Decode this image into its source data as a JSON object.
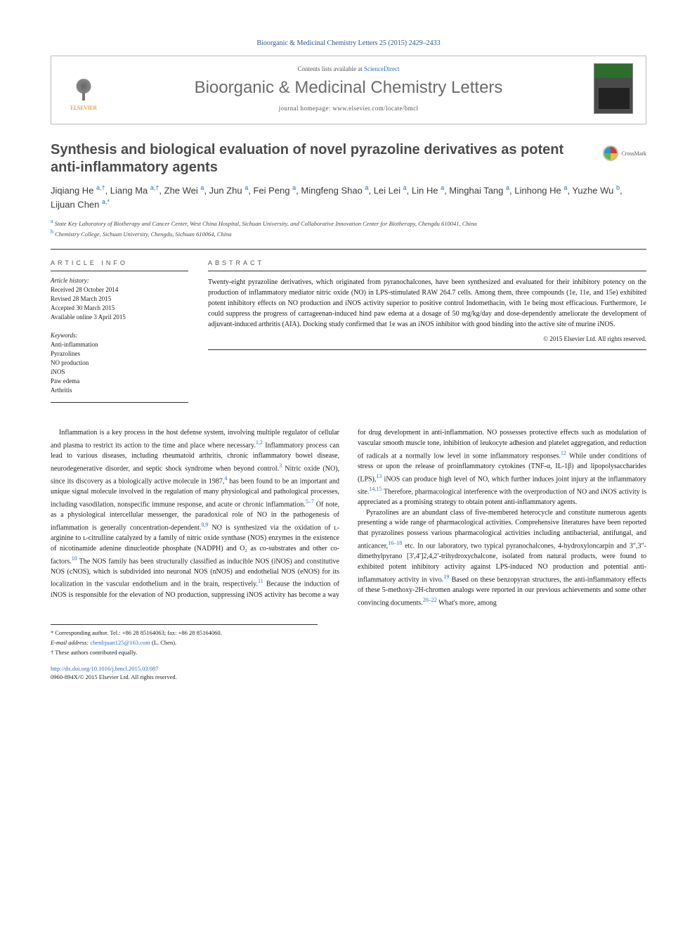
{
  "citation": "Bioorganic & Medicinal Chemistry Letters 25 (2015) 2429–2433",
  "header": {
    "contents_prefix": "Contents lists available at ",
    "contents_link": "ScienceDirect",
    "journal": "Bioorganic & Medicinal Chemistry Letters",
    "homepage_prefix": "journal homepage: ",
    "homepage": "www.elsevier.com/locate/bmcl",
    "publisher": "ELSEVIER"
  },
  "title": "Synthesis and biological evaluation of novel pyrazoline derivatives as potent anti-inflammatory agents",
  "crossmark": "CrossMark",
  "authors_html": "Jiqiang He <sup>a,†</sup>, Liang Ma <sup>a,†</sup>, Zhe Wei <sup>a</sup>, Jun Zhu <sup>a</sup>, Fei Peng <sup>a</sup>, Mingfeng Shao <sup>a</sup>, Lei Lei <sup>a</sup>, Lin He <sup>a</sup>, Minghai Tang <sup>a</sup>, Linhong He <sup>a</sup>, Yuzhe Wu <sup>b</sup>, Lijuan Chen <sup>a,*</sup>",
  "affiliations": [
    {
      "key": "a",
      "text": "State Key Laboratory of Biotherapy and Cancer Center, West China Hospital, Sichuan University, and Collaborative Innovation Center for Biotherapy, Chengdu 610041, China"
    },
    {
      "key": "b",
      "text": "Chemistry College, Sichuan University, Chengdu, Sichuan 610064, China"
    }
  ],
  "article_info": {
    "head": "ARTICLE INFO",
    "history_label": "Article history:",
    "history": [
      "Received 28 October 2014",
      "Revised 28 March 2015",
      "Accepted 30 March 2015",
      "Available online 3 April 2015"
    ],
    "keywords_label": "Keywords:",
    "keywords": [
      "Anti-inflammation",
      "Pyrazolines",
      "NO production",
      "iNOS",
      "Paw edema",
      "Arthritis"
    ]
  },
  "abstract": {
    "head": "ABSTRACT",
    "text": "Twenty-eight pyrazoline derivatives, which originated from pyranochalcones, have been synthesized and evaluated for their inhibitory potency on the production of inflammatory mediator nitric oxide (NO) in LPS-stimulated RAW 264.7 cells. Among them, three compounds (1e, 11e, and 15e) exhibited potent inhibitory effects on NO production and iNOS activity superior to positive control Indomethacin, with 1e being most efficacious. Furthermore, 1e could suppress the progress of carrageenan-induced hind paw edema at a dosage of 50 mg/kg/day and dose-dependently ameliorate the development of adjuvant-induced arthritis (AIA). Docking study confirmed that 1e was an iNOS inhibitor with good binding into the active site of murine iNOS.",
    "copyright": "© 2015 Elsevier Ltd. All rights reserved."
  },
  "body": {
    "p1": "Inflammation is a key process in the host defense system, involving multiple regulator of cellular and plasma to restrict its action to the time and place where necessary.<sup>1,2</sup> Inflammatory process can lead to various diseases, including rheumatoid arthritis, chronic inflammatory bowel disease, neurodegenerative disorder, and septic shock syndrome when beyond control.<sup>3</sup> Nitric oxide (NO), since its discovery as a biologically active molecule in 1987,<sup>4</sup> has been found to be an important and unique signal molecule involved in the regulation of many physiological and pathological processes, including vasodilation, nonspecific immune response, and acute or chronic inflammation.<sup>5–7</sup> Of note, as a physiological intercellular messenger, the paradoxical role of NO in the pathogenesis of inflammation is generally concentration-dependent.<sup>8,9</sup> NO is synthesized via the oxidation of ʟ-arginine to ʟ-citrulline catalyzed by a family of nitric oxide synthase (NOS) enzymes in the existence of nicotinamide adenine dinucleotide phosphate (NADPH) and O₂ as co-substrates and other co-factors.<sup>10</sup> The NOS family has been structurally classified as inducible NOS (iNOS) and constitutive NOS (cNOS), which is subdivided into neuronal NOS (nNOS) and endothelial NOS (eNOS) for its localization in the vascular endothelium and in the brain, respectively.<sup>11</sup> Because the induction of iNOS is responsible for the elevation of NO production, suppressing iNOS activity has become a way for drug development in anti-inflammation. NO possesses protective effects such as modulation of vascular smooth muscle tone, inhibition of leukocyte adhesion and platelet aggregation, and reduction of radicals at a normally low level in some inflammatory responses.<sup>12</sup> While under conditions of stress or upon the release of proinflammatory cytokines (TNF-α, IL-1β) and lipopolysaccharides (LPS),<sup>13</sup> iNOS can produce high level of NO, which further induces joint injury at the inflammatory site.<sup>14,15</sup> Therefore, pharmacological interference with the overproduction of NO and iNOS activity is appreciated as a promising strategy to obtain potent anti-inflammatory agents.",
    "p2": "Pyrazolines are an abundant class of five-membered heterocycle and constitute numerous agents presenting a wide range of pharmacological activities. Comprehensive literatures have been reported that pyrazolines possess various pharmacological activities including antibacterial, antifungal, and anticancer,<sup>16–18</sup> etc. In our laboratory, two typical pyranochalcones, 4-hydroxyloncarpin and 3″,3″-dimethylpyrano [3′,4′]2,4,2′-trihydroxychalcone, isolated from natural products, were found to exhibited potent inhibitory activity against LPS-induced NO production and potential anti-inflammatory activity in vivo.<sup>19</sup> Based on these benzopyran structures, the anti-inflammatory effects of these 5-methoxy-2H-chromen analogs were reported in our previous achievements and some other convincing documents.<sup>20–22</sup> What's more, among"
  },
  "footnotes": {
    "corr": "* Corresponding author. Tel.: +86 28 85164063; fax: +86 28 85164060.",
    "email_label": "E-mail address:",
    "email": "chenlijuan125@163.com",
    "email_who": "(L. Chen).",
    "equal": "† These authors contributed equally."
  },
  "bottom": {
    "doi": "http://dx.doi.org/10.1016/j.bmcl.2015.03.087",
    "issn_copy": "0960-894X/© 2015 Elsevier Ltd. All rights reserved."
  },
  "colors": {
    "link": "#2a6db8",
    "heading": "#4a4a4a",
    "publisher": "#e37b00"
  }
}
